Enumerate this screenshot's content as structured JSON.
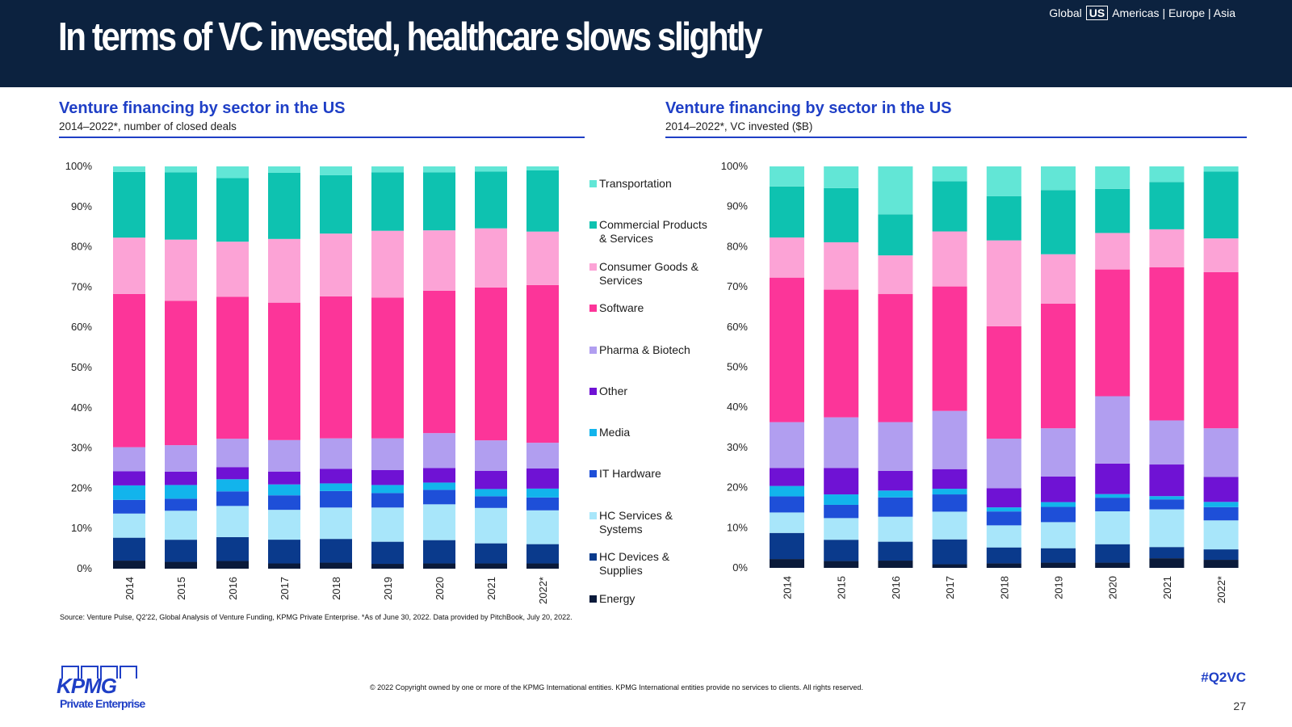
{
  "header": {
    "title": "In terms of VC invested, healthcare slows slightly",
    "regions": {
      "global": "Global",
      "current": "US",
      "others": "Americas | Europe | Asia"
    }
  },
  "series_colors": {
    "Energy": "#0a1a3a",
    "HC Devices & Supplies": "#0a3a8c",
    "HC Services & Systems": "#a8e6fa",
    "IT Hardware": "#1e4fd8",
    "Media": "#12b4ec",
    "Other": "#6f12d4",
    "Pharma & Biotech": "#b19ef0",
    "Software": "#fc3599",
    "Consumer Goods & Services": "#fca3d6",
    "Commercial Products & Services": "#0ec2b0",
    "Transportation": "#62e6d6"
  },
  "legend": [
    {
      "label_line1": "Transportation",
      "label_line2": "",
      "color": "#62e6d6"
    },
    {
      "label_line1": "Commercial Products",
      "label_line2": "& Services",
      "color": "#0ec2b0"
    },
    {
      "label_line1": "Consumer Goods &",
      "label_line2": "Services",
      "color": "#fca3d6"
    },
    {
      "label_line1": "Software",
      "label_line2": "",
      "color": "#fc3599"
    },
    {
      "label_line1": "Pharma & Biotech",
      "label_line2": "",
      "color": "#b19ef0"
    },
    {
      "label_line1": "Other",
      "label_line2": "",
      "color": "#6f12d4"
    },
    {
      "label_line1": "Media",
      "label_line2": "",
      "color": "#12b4ec"
    },
    {
      "label_line1": "IT Hardware",
      "label_line2": "",
      "color": "#1e4fd8"
    },
    {
      "label_line1": "HC Services &",
      "label_line2": "Systems",
      "color": "#a8e6fa"
    },
    {
      "label_line1": "HC Devices &",
      "label_line2": "Supplies",
      "color": "#0a3a8c"
    },
    {
      "label_line1": "Energy",
      "label_line2": "",
      "color": "#0a1a3a"
    }
  ],
  "chart_data": [
    {
      "type": "bar",
      "stacked": true,
      "title": "Venture financing by sector in the US",
      "subtitle": "2014–2022*, number of closed deals",
      "categories": [
        "2014",
        "2015",
        "2016",
        "2017",
        "2018",
        "2019",
        "2020",
        "2021",
        "2022*"
      ],
      "y_ticks": [
        "0%",
        "10%",
        "20%",
        "30%",
        "40%",
        "50%",
        "60%",
        "70%",
        "80%",
        "90%",
        "100%"
      ],
      "ylim": [
        0,
        100
      ],
      "unit": "%",
      "legend": "right",
      "series": [
        {
          "name": "Energy",
          "values": [
            2.0,
            1.7,
            1.9,
            1.3,
            1.5,
            1.2,
            1.3,
            1.3,
            1.3
          ]
        },
        {
          "name": "HC Devices & Supplies",
          "values": [
            5.7,
            5.5,
            5.9,
            5.9,
            5.9,
            5.5,
            5.8,
            5.0,
            4.8
          ]
        },
        {
          "name": "HC Services & Systems",
          "values": [
            6.0,
            7.2,
            7.7,
            7.4,
            7.8,
            8.5,
            8.9,
            8.8,
            8.4
          ]
        },
        {
          "name": "IT Hardware",
          "values": [
            3.4,
            3.0,
            3.6,
            3.6,
            4.1,
            3.6,
            3.6,
            2.9,
            3.2
          ]
        },
        {
          "name": "Media",
          "values": [
            3.6,
            3.4,
            3.0,
            2.7,
            1.9,
            2.0,
            1.8,
            1.8,
            2.2
          ]
        },
        {
          "name": "Other",
          "values": [
            3.5,
            3.3,
            3.0,
            3.2,
            3.6,
            3.7,
            3.6,
            4.5,
            5.0
          ]
        },
        {
          "name": "Pharma & Biotech",
          "values": [
            6.0,
            6.6,
            7.0,
            7.8,
            7.6,
            7.9,
            8.7,
            7.6,
            6.4
          ]
        },
        {
          "name": "Software",
          "values": [
            38.1,
            35.9,
            35.1,
            34.1,
            35.3,
            35.0,
            35.4,
            38.0,
            39.2
          ]
        },
        {
          "name": "Consumer Goods & Services",
          "values": [
            14.0,
            15.2,
            13.6,
            15.8,
            15.6,
            16.6,
            15.0,
            14.7,
            13.3
          ]
        },
        {
          "name": "Commercial Products & Services",
          "values": [
            16.3,
            16.7,
            15.7,
            16.4,
            14.5,
            14.5,
            14.4,
            14.1,
            15.2
          ]
        },
        {
          "name": "Transportation",
          "values": [
            1.4,
            1.5,
            2.9,
            1.6,
            2.2,
            1.5,
            1.5,
            1.3,
            1.0
          ]
        }
      ]
    },
    {
      "type": "bar",
      "stacked": true,
      "title": "Venture financing by sector in the US",
      "subtitle": "2014–2022*, VC invested ($B)",
      "categories": [
        "2014",
        "2015",
        "2016",
        "2017",
        "2018",
        "2019",
        "2020",
        "2021",
        "2022*"
      ],
      "y_ticks": [
        "0%",
        "10%",
        "20%",
        "30%",
        "40%",
        "50%",
        "60%",
        "70%",
        "80%",
        "90%",
        "100%"
      ],
      "ylim": [
        0,
        100
      ],
      "unit": "%",
      "series": [
        {
          "name": "Energy",
          "values": [
            2.2,
            1.7,
            1.8,
            0.9,
            1.1,
            1.3,
            1.3,
            2.4,
            2.0
          ]
        },
        {
          "name": "HC Devices & Supplies",
          "values": [
            6.5,
            5.3,
            4.7,
            6.2,
            3.9,
            3.6,
            4.6,
            2.8,
            2.6
          ]
        },
        {
          "name": "HC Services & Systems",
          "values": [
            5.1,
            5.4,
            6.2,
            6.9,
            5.4,
            6.5,
            8.2,
            9.4,
            7.2
          ]
        },
        {
          "name": "IT Hardware",
          "values": [
            4.0,
            3.3,
            4.8,
            4.3,
            3.4,
            3.8,
            3.4,
            2.5,
            3.3
          ]
        },
        {
          "name": "Media",
          "values": [
            2.6,
            2.6,
            1.7,
            1.4,
            1.0,
            1.2,
            0.9,
            0.8,
            1.3
          ]
        },
        {
          "name": "Other",
          "values": [
            4.5,
            6.6,
            4.9,
            4.9,
            4.7,
            6.4,
            7.6,
            7.9,
            6.2
          ]
        },
        {
          "name": "Pharma & Biotech",
          "values": [
            11.4,
            12.6,
            12.1,
            14.5,
            12.1,
            12.0,
            16.8,
            11.0,
            12.1
          ]
        },
        {
          "name": "Software",
          "values": [
            36.0,
            31.8,
            31.8,
            31.0,
            27.5,
            31.1,
            31.6,
            38.2,
            38.8
          ]
        },
        {
          "name": "Consumer Goods & Services",
          "values": [
            10.0,
            11.8,
            9.6,
            13.7,
            21.0,
            12.3,
            9.1,
            9.5,
            8.4
          ]
        },
        {
          "name": "Commercial Products & Services",
          "values": [
            12.7,
            13.5,
            10.2,
            12.5,
            10.8,
            16.0,
            11.0,
            11.8,
            16.6
          ]
        },
        {
          "name": "Transportation",
          "values": [
            5.0,
            5.4,
            11.9,
            3.7,
            7.3,
            5.9,
            5.6,
            3.9,
            1.3
          ]
        }
      ]
    }
  ],
  "source_note": "Source: Venture Pulse, Q2'22, Global Analysis of Venture Funding, KPMG Private Enterprise. *As of June 30, 2022. Data provided by PitchBook, July 20, 2022.",
  "footer": {
    "copyright": "© 2022 Copyright owned by one or more of the KPMG International entities. KPMG International entities provide no services to clients. All rights reserved.",
    "hashtag": "#Q2VC",
    "page_number": "27",
    "logo_word": "KPMG",
    "logo_sub": "Private Enterprise"
  }
}
